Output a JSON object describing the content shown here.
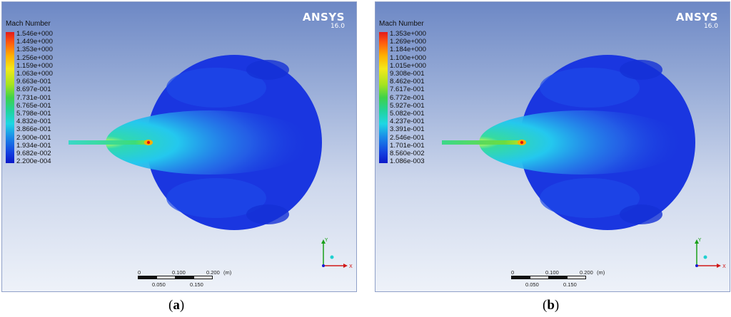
{
  "panels": [
    {
      "id": "a",
      "legend_title": "Mach Number",
      "brand": "ANSYS",
      "version": "16.0",
      "legend_values": [
        "1.546e+000",
        "1.449e+000",
        "1.353e+000",
        "1.256e+000",
        "1.159e+000",
        "1.063e+000",
        "9.663e-001",
        "8.697e-001",
        "7.731e-001",
        "6.765e-001",
        "5.798e-001",
        "4.832e-001",
        "3.866e-001",
        "2.900e-001",
        "1.934e-001",
        "9.682e-002",
        "2.200e-004"
      ],
      "scale": {
        "t0": "0",
        "t1": "0.100",
        "t2": "0.200",
        "unit": "(m)",
        "b1": "0.050",
        "b2": "0.150"
      },
      "axes": {
        "y": "Y",
        "x": "X"
      },
      "caption_letter": "a"
    },
    {
      "id": "b",
      "legend_title": "Mach Number",
      "brand": "ANSYS",
      "version": "16.0",
      "legend_values": [
        "1.353e+000",
        "1.269e+000",
        "1.184e+000",
        "1.100e+000",
        "1.015e+000",
        "9.308e-001",
        "8.462e-001",
        "7.617e-001",
        "6.772e-001",
        "5.927e-001",
        "5.082e-001",
        "4.237e-001",
        "3.391e-001",
        "2.546e-001",
        "1.701e-001",
        "8.560e-002",
        "1.086e-003"
      ],
      "scale": {
        "t0": "0",
        "t1": "0.100",
        "t2": "0.200",
        "unit": "(m)",
        "b1": "0.050",
        "b2": "0.150"
      },
      "axes": {
        "y": "Y",
        "x": "X"
      },
      "caption_letter": "b"
    }
  ],
  "colors": {
    "deep_blue": "#1a36e0",
    "jet_core": "#e01010",
    "background_top": "#6d88c5",
    "background_bottom": "#eef2f9"
  }
}
